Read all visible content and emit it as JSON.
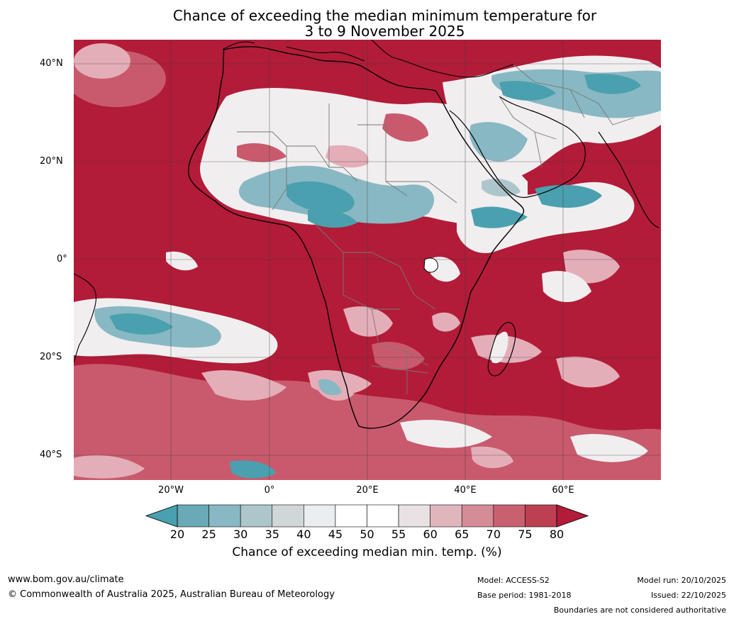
{
  "title": {
    "line1": "Chance of exceeding the median minimum temperature for",
    "line2": "3 to 9 November 2025"
  },
  "map": {
    "lat_labels": [
      "40°N",
      "20°N",
      "0°",
      "20°S",
      "40°S"
    ],
    "lon_labels": [
      "20°W",
      "0°",
      "20°E",
      "40°E",
      "60°E"
    ],
    "colors": {
      "ocean_warm": "#b21c38",
      "cool_strong": "#3fa0b0",
      "cool_mid": "#7fb5c0",
      "neutral": "#ffffff",
      "warm_light": "#e4aeb8",
      "warm_mid": "#c95a6d",
      "coastline": "#000000",
      "border": "#777777",
      "grid": "#3a3a3a"
    }
  },
  "colorbar": {
    "ticks": [
      "20",
      "25",
      "30",
      "35",
      "40",
      "45",
      "50",
      "55",
      "60",
      "65",
      "70",
      "75",
      "80"
    ],
    "colors": [
      "#4aa0ae",
      "#6aa9b6",
      "#88b8c3",
      "#adc6cc",
      "#d1d7d9",
      "#eaeef0",
      "#ffffff",
      "#ffffff",
      "#e8e2e4",
      "#e0b6bd",
      "#d48c97",
      "#c8606f",
      "#bd3f52",
      "#b21c38"
    ],
    "label": "Chance of exceeding median min. temp. (%)"
  },
  "footer": {
    "website": "www.bom.gov.au/climate",
    "copyright": "© Commonwealth of Australia 2025, Australian Bureau of Meteorology",
    "model": "Model: ACCESS-S2",
    "base_period": "Base period: 1981-2018",
    "model_run": "Model run: 20/10/2025",
    "issued": "Issued: 22/10/2025",
    "disclaimer": "Boundaries are not considered authoritative"
  }
}
